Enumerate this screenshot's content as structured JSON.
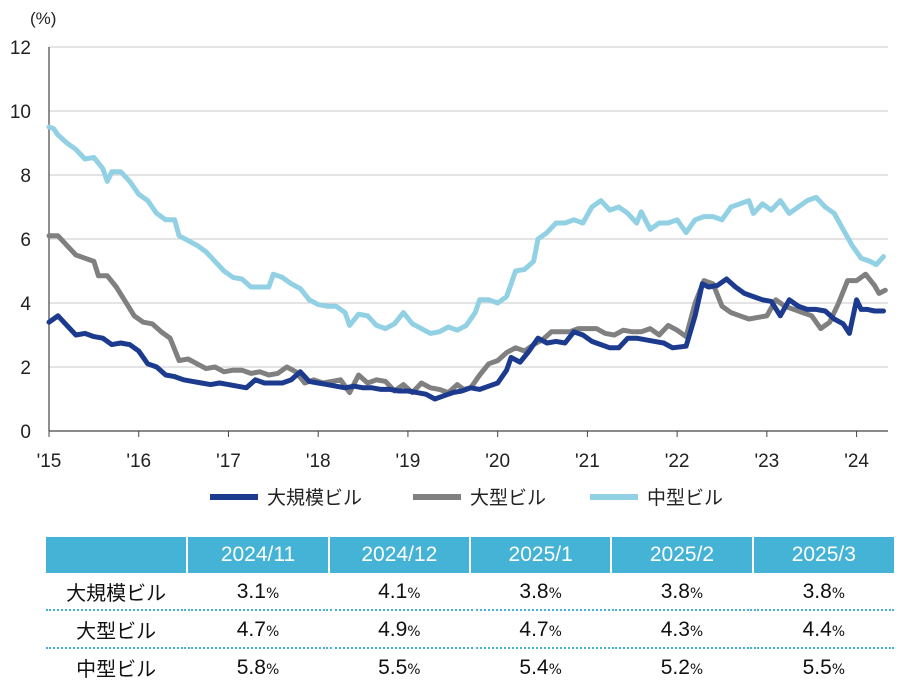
{
  "chart_data": {
    "type": "line",
    "ylabel": "(%)",
    "ylim": [
      0,
      12
    ],
    "yticks": [
      "0",
      "2",
      "4",
      "6",
      "8",
      "10",
      "12"
    ],
    "x_start": 2015.0,
    "x_end": 2024.35,
    "xticks": [
      {
        "x": 2015,
        "label": "'15"
      },
      {
        "x": 2016,
        "label": "'16"
      },
      {
        "x": 2017,
        "label": "'17"
      },
      {
        "x": 2018,
        "label": "'18"
      },
      {
        "x": 2019,
        "label": "'19"
      },
      {
        "x": 2020,
        "label": "'20"
      },
      {
        "x": 2021,
        "label": "'21"
      },
      {
        "x": 2022,
        "label": "'22"
      },
      {
        "x": 2023,
        "label": "'23"
      },
      {
        "x": 2024,
        "label": "'24"
      }
    ],
    "grid": true,
    "series": [
      {
        "name": "大規模ビル",
        "color": "#1c3a8e",
        "points": [
          [
            2015.0,
            3.4
          ],
          [
            2015.1,
            3.6
          ],
          [
            2015.2,
            3.3
          ],
          [
            2015.3,
            3.0
          ],
          [
            2015.4,
            3.05
          ],
          [
            2015.5,
            2.95
          ],
          [
            2015.6,
            2.9
          ],
          [
            2015.7,
            2.7
          ],
          [
            2015.8,
            2.75
          ],
          [
            2015.9,
            2.7
          ],
          [
            2016.0,
            2.5
          ],
          [
            2016.1,
            2.1
          ],
          [
            2016.2,
            2.0
          ],
          [
            2016.3,
            1.75
          ],
          [
            2016.4,
            1.7
          ],
          [
            2016.5,
            1.6
          ],
          [
            2016.6,
            1.55
          ],
          [
            2016.7,
            1.5
          ],
          [
            2016.8,
            1.45
          ],
          [
            2016.9,
            1.5
          ],
          [
            2017.0,
            1.45
          ],
          [
            2017.1,
            1.4
          ],
          [
            2017.2,
            1.35
          ],
          [
            2017.3,
            1.6
          ],
          [
            2017.4,
            1.5
          ],
          [
            2017.5,
            1.5
          ],
          [
            2017.6,
            1.5
          ],
          [
            2017.7,
            1.6
          ],
          [
            2017.8,
            1.85
          ],
          [
            2017.9,
            1.55
          ],
          [
            2018.0,
            1.5
          ],
          [
            2018.1,
            1.45
          ],
          [
            2018.2,
            1.4
          ],
          [
            2018.3,
            1.35
          ],
          [
            2018.4,
            1.4
          ],
          [
            2018.5,
            1.35
          ],
          [
            2018.6,
            1.35
          ],
          [
            2018.7,
            1.3
          ],
          [
            2018.8,
            1.3
          ],
          [
            2018.9,
            1.25
          ],
          [
            2019.0,
            1.25
          ],
          [
            2019.1,
            1.2
          ],
          [
            2019.2,
            1.15
          ],
          [
            2019.3,
            1.0
          ],
          [
            2019.4,
            1.1
          ],
          [
            2019.5,
            1.2
          ],
          [
            2019.6,
            1.25
          ],
          [
            2019.7,
            1.35
          ],
          [
            2019.8,
            1.3
          ],
          [
            2019.9,
            1.4
          ],
          [
            2020.0,
            1.5
          ],
          [
            2020.1,
            1.9
          ],
          [
            2020.15,
            2.3
          ],
          [
            2020.25,
            2.15
          ],
          [
            2020.35,
            2.5
          ],
          [
            2020.45,
            2.9
          ],
          [
            2020.55,
            2.75
          ],
          [
            2020.65,
            2.8
          ],
          [
            2020.75,
            2.75
          ],
          [
            2020.85,
            3.1
          ],
          [
            2020.95,
            3.0
          ],
          [
            2021.05,
            2.8
          ],
          [
            2021.15,
            2.7
          ],
          [
            2021.25,
            2.6
          ],
          [
            2021.35,
            2.6
          ],
          [
            2021.45,
            2.9
          ],
          [
            2021.55,
            2.9
          ],
          [
            2021.65,
            2.85
          ],
          [
            2021.75,
            2.8
          ],
          [
            2021.85,
            2.75
          ],
          [
            2021.95,
            2.6
          ],
          [
            2022.1,
            2.65
          ],
          [
            2022.2,
            3.6
          ],
          [
            2022.28,
            4.6
          ],
          [
            2022.35,
            4.5
          ],
          [
            2022.45,
            4.55
          ],
          [
            2022.55,
            4.75
          ],
          [
            2022.65,
            4.5
          ],
          [
            2022.75,
            4.3
          ],
          [
            2022.85,
            4.2
          ],
          [
            2022.95,
            4.1
          ],
          [
            2023.05,
            4.05
          ],
          [
            2023.15,
            3.6
          ],
          [
            2023.25,
            4.1
          ],
          [
            2023.35,
            3.9
          ],
          [
            2023.45,
            3.8
          ],
          [
            2023.55,
            3.8
          ],
          [
            2023.65,
            3.75
          ],
          [
            2023.75,
            3.5
          ],
          [
            2023.85,
            3.35
          ],
          [
            2023.92,
            3.05
          ],
          [
            2024.0,
            4.1
          ],
          [
            2024.05,
            3.8
          ],
          [
            2024.12,
            3.8
          ],
          [
            2024.2,
            3.75
          ],
          [
            2024.3,
            3.75
          ]
        ]
      },
      {
        "name": "大型ビル",
        "color": "#808080",
        "points": [
          [
            2015.0,
            6.1
          ],
          [
            2015.1,
            6.1
          ],
          [
            2015.2,
            5.8
          ],
          [
            2015.3,
            5.5
          ],
          [
            2015.4,
            5.4
          ],
          [
            2015.5,
            5.3
          ],
          [
            2015.55,
            4.85
          ],
          [
            2015.65,
            4.85
          ],
          [
            2015.75,
            4.5
          ],
          [
            2015.85,
            4.05
          ],
          [
            2015.95,
            3.6
          ],
          [
            2016.05,
            3.4
          ],
          [
            2016.15,
            3.35
          ],
          [
            2016.25,
            3.1
          ],
          [
            2016.35,
            2.9
          ],
          [
            2016.45,
            2.2
          ],
          [
            2016.55,
            2.25
          ],
          [
            2016.65,
            2.1
          ],
          [
            2016.75,
            1.95
          ],
          [
            2016.85,
            2.0
          ],
          [
            2016.95,
            1.85
          ],
          [
            2017.05,
            1.9
          ],
          [
            2017.15,
            1.9
          ],
          [
            2017.25,
            1.8
          ],
          [
            2017.35,
            1.85
          ],
          [
            2017.45,
            1.75
          ],
          [
            2017.55,
            1.8
          ],
          [
            2017.65,
            2.0
          ],
          [
            2017.75,
            1.85
          ],
          [
            2017.85,
            1.5
          ],
          [
            2017.95,
            1.6
          ],
          [
            2018.05,
            1.5
          ],
          [
            2018.15,
            1.55
          ],
          [
            2018.25,
            1.6
          ],
          [
            2018.35,
            1.2
          ],
          [
            2018.45,
            1.75
          ],
          [
            2018.55,
            1.5
          ],
          [
            2018.65,
            1.6
          ],
          [
            2018.75,
            1.55
          ],
          [
            2018.85,
            1.25
          ],
          [
            2018.95,
            1.45
          ],
          [
            2019.05,
            1.2
          ],
          [
            2019.15,
            1.5
          ],
          [
            2019.25,
            1.35
          ],
          [
            2019.35,
            1.3
          ],
          [
            2019.45,
            1.2
          ],
          [
            2019.55,
            1.45
          ],
          [
            2019.62,
            1.3
          ],
          [
            2019.7,
            1.35
          ],
          [
            2019.8,
            1.75
          ],
          [
            2019.9,
            2.1
          ],
          [
            2020.0,
            2.2
          ],
          [
            2020.1,
            2.45
          ],
          [
            2020.2,
            2.6
          ],
          [
            2020.3,
            2.5
          ],
          [
            2020.4,
            2.7
          ],
          [
            2020.5,
            2.85
          ],
          [
            2020.6,
            3.1
          ],
          [
            2020.7,
            3.1
          ],
          [
            2020.8,
            3.1
          ],
          [
            2020.9,
            3.2
          ],
          [
            2021.0,
            3.2
          ],
          [
            2021.1,
            3.2
          ],
          [
            2021.2,
            3.05
          ],
          [
            2021.3,
            3.0
          ],
          [
            2021.4,
            3.15
          ],
          [
            2021.5,
            3.1
          ],
          [
            2021.6,
            3.1
          ],
          [
            2021.7,
            3.2
          ],
          [
            2021.8,
            3.0
          ],
          [
            2021.9,
            3.3
          ],
          [
            2022.0,
            3.15
          ],
          [
            2022.1,
            2.95
          ],
          [
            2022.2,
            4.0
          ],
          [
            2022.3,
            4.7
          ],
          [
            2022.4,
            4.6
          ],
          [
            2022.5,
            3.9
          ],
          [
            2022.6,
            3.7
          ],
          [
            2022.7,
            3.6
          ],
          [
            2022.8,
            3.5
          ],
          [
            2022.9,
            3.55
          ],
          [
            2023.0,
            3.6
          ],
          [
            2023.1,
            4.1
          ],
          [
            2023.2,
            3.9
          ],
          [
            2023.3,
            3.8
          ],
          [
            2023.4,
            3.7
          ],
          [
            2023.5,
            3.6
          ],
          [
            2023.6,
            3.2
          ],
          [
            2023.7,
            3.4
          ],
          [
            2023.8,
            4.0
          ],
          [
            2023.9,
            4.7
          ],
          [
            2024.0,
            4.7
          ],
          [
            2024.1,
            4.9
          ],
          [
            2024.2,
            4.55
          ],
          [
            2024.25,
            4.3
          ],
          [
            2024.32,
            4.4
          ]
        ]
      },
      {
        "name": "中型ビル",
        "color": "#92d1e3",
        "points": [
          [
            2015.0,
            9.5
          ],
          [
            2015.05,
            9.45
          ],
          [
            2015.1,
            9.25
          ],
          [
            2015.2,
            9.0
          ],
          [
            2015.3,
            8.8
          ],
          [
            2015.4,
            8.5
          ],
          [
            2015.5,
            8.55
          ],
          [
            2015.6,
            8.2
          ],
          [
            2015.65,
            7.8
          ],
          [
            2015.7,
            8.1
          ],
          [
            2015.8,
            8.1
          ],
          [
            2015.9,
            7.8
          ],
          [
            2016.0,
            7.4
          ],
          [
            2016.1,
            7.2
          ],
          [
            2016.2,
            6.8
          ],
          [
            2016.3,
            6.6
          ],
          [
            2016.4,
            6.6
          ],
          [
            2016.45,
            6.1
          ],
          [
            2016.55,
            5.95
          ],
          [
            2016.65,
            5.8
          ],
          [
            2016.75,
            5.6
          ],
          [
            2016.85,
            5.3
          ],
          [
            2016.95,
            5.0
          ],
          [
            2017.05,
            4.8
          ],
          [
            2017.15,
            4.75
          ],
          [
            2017.25,
            4.5
          ],
          [
            2017.35,
            4.5
          ],
          [
            2017.45,
            4.5
          ],
          [
            2017.5,
            4.9
          ],
          [
            2017.6,
            4.8
          ],
          [
            2017.7,
            4.6
          ],
          [
            2017.8,
            4.45
          ],
          [
            2017.9,
            4.1
          ],
          [
            2018.0,
            3.95
          ],
          [
            2018.1,
            3.9
          ],
          [
            2018.2,
            3.9
          ],
          [
            2018.3,
            3.7
          ],
          [
            2018.35,
            3.3
          ],
          [
            2018.45,
            3.65
          ],
          [
            2018.55,
            3.6
          ],
          [
            2018.65,
            3.3
          ],
          [
            2018.75,
            3.2
          ],
          [
            2018.85,
            3.35
          ],
          [
            2018.95,
            3.7
          ],
          [
            2019.05,
            3.35
          ],
          [
            2019.15,
            3.2
          ],
          [
            2019.25,
            3.05
          ],
          [
            2019.35,
            3.1
          ],
          [
            2019.45,
            3.25
          ],
          [
            2019.55,
            3.15
          ],
          [
            2019.65,
            3.3
          ],
          [
            2019.75,
            3.7
          ],
          [
            2019.8,
            4.1
          ],
          [
            2019.9,
            4.1
          ],
          [
            2020.0,
            4.0
          ],
          [
            2020.1,
            4.2
          ],
          [
            2020.2,
            5.0
          ],
          [
            2020.3,
            5.05
          ],
          [
            2020.4,
            5.3
          ],
          [
            2020.45,
            6.0
          ],
          [
            2020.55,
            6.2
          ],
          [
            2020.65,
            6.5
          ],
          [
            2020.75,
            6.5
          ],
          [
            2020.85,
            6.6
          ],
          [
            2020.95,
            6.5
          ],
          [
            2021.05,
            7.0
          ],
          [
            2021.15,
            7.2
          ],
          [
            2021.25,
            6.9
          ],
          [
            2021.35,
            7.0
          ],
          [
            2021.45,
            6.8
          ],
          [
            2021.55,
            6.5
          ],
          [
            2021.6,
            6.85
          ],
          [
            2021.7,
            6.3
          ],
          [
            2021.8,
            6.5
          ],
          [
            2021.9,
            6.5
          ],
          [
            2022.0,
            6.6
          ],
          [
            2022.1,
            6.2
          ],
          [
            2022.2,
            6.6
          ],
          [
            2022.3,
            6.7
          ],
          [
            2022.4,
            6.7
          ],
          [
            2022.5,
            6.6
          ],
          [
            2022.6,
            7.0
          ],
          [
            2022.7,
            7.1
          ],
          [
            2022.8,
            7.2
          ],
          [
            2022.85,
            6.8
          ],
          [
            2022.95,
            7.1
          ],
          [
            2023.05,
            6.9
          ],
          [
            2023.15,
            7.2
          ],
          [
            2023.25,
            6.8
          ],
          [
            2023.35,
            7.0
          ],
          [
            2023.45,
            7.2
          ],
          [
            2023.55,
            7.3
          ],
          [
            2023.65,
            7.0
          ],
          [
            2023.75,
            6.8
          ],
          [
            2023.85,
            6.3
          ],
          [
            2023.95,
            5.8
          ],
          [
            2024.05,
            5.4
          ],
          [
            2024.15,
            5.3
          ],
          [
            2024.22,
            5.2
          ],
          [
            2024.3,
            5.45
          ]
        ]
      }
    ]
  },
  "table": {
    "columns": [
      "2024/11",
      "2024/12",
      "2025/1",
      "2025/2",
      "2025/3"
    ],
    "pct_symbol": "%",
    "rows": [
      {
        "label": "大規模ビル",
        "values": [
          "3.1",
          "4.1",
          "3.8",
          "3.8",
          "3.8"
        ]
      },
      {
        "label": "大型ビル",
        "values": [
          "4.7",
          "4.9",
          "4.7",
          "4.3",
          "4.4"
        ]
      },
      {
        "label": "中型ビル",
        "values": [
          "5.8",
          "5.5",
          "5.4",
          "5.2",
          "5.5"
        ]
      }
    ]
  }
}
